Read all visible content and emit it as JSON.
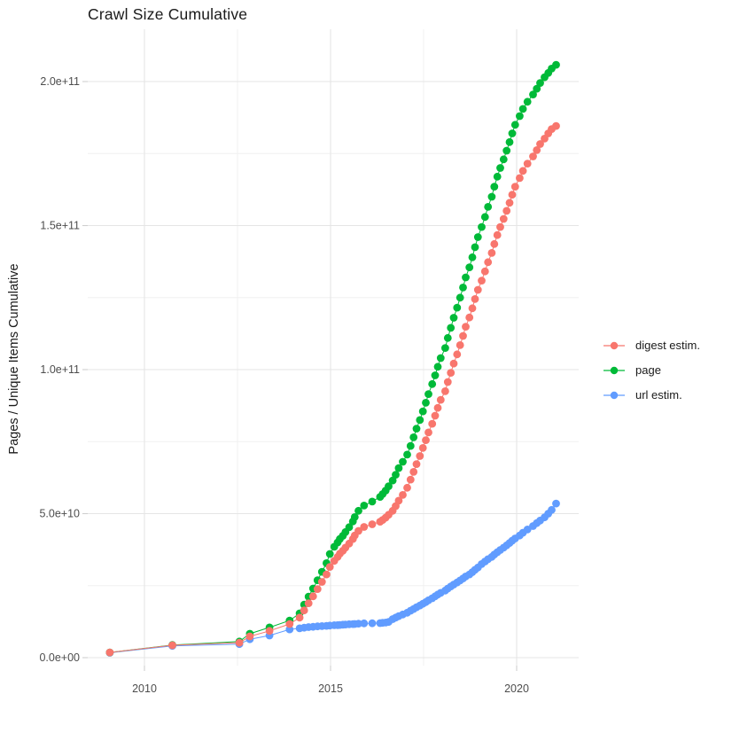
{
  "title": "Crawl Size Cumulative",
  "axes": {
    "y_label": "Pages / Unique Items Cumulative",
    "y_ticks": [
      {
        "label": "0.0e+00",
        "value_e9": 0
      },
      {
        "label": "5.0e+10",
        "value_e9": 50
      },
      {
        "label": "1.0e+11",
        "value_e9": 100
      },
      {
        "label": "1.5e+11",
        "value_e9": 150
      },
      {
        "label": "2.0e+11",
        "value_e9": 200
      }
    ],
    "x_ticks": [
      {
        "label": "2010",
        "year": 2010
      },
      {
        "label": "2015",
        "year": 2015
      },
      {
        "label": "2020",
        "year": 2020
      }
    ]
  },
  "legend": {
    "items": [
      {
        "label": "digest estim.",
        "color": "#F8766D",
        "series": "digest estim."
      },
      {
        "label": "page",
        "color": "#00BA38",
        "series": "page"
      },
      {
        "label": "url estim.",
        "color": "#619CFF",
        "series": "url estim."
      }
    ]
  },
  "colors": {
    "digest": "#F8766D",
    "page": "#00BA38",
    "url": "#619CFF",
    "grid_major": "#e5e5e5",
    "grid_minor": "#f0f0f0",
    "tick_mark": "#cfcfcf",
    "tick_text": "#4d4d4d",
    "text": "#1a1a1a"
  },
  "chart_data": {
    "type": "scatter",
    "title": "Crawl Size Cumulative",
    "xlabel": "",
    "ylabel": "Pages / Unique Items Cumulative",
    "x_unit": "year (crawl date)",
    "values_unit_multiplier": 1000000000.0,
    "xlim": [
      2008.5,
      2021.7
    ],
    "ylim_e9": [
      0,
      218
    ],
    "grid": true,
    "legend_position": "right",
    "x_minor_breaks": [
      2012.5,
      2017.5
    ],
    "y_minor_breaks_e9": [
      25,
      75,
      125,
      175
    ],
    "series": [
      {
        "name": "digest estim.",
        "color": "#F8766D",
        "points_year_e9": [
          [
            2009.07,
            1.8
          ],
          [
            2010.75,
            4.3
          ],
          [
            2012.55,
            5.2
          ],
          [
            2012.83,
            7.4
          ],
          [
            2013.36,
            9.3
          ],
          [
            2013.9,
            11.7
          ],
          [
            2014.17,
            13.9
          ],
          [
            2014.29,
            16.4
          ],
          [
            2014.41,
            18.9
          ],
          [
            2014.53,
            21.3
          ],
          [
            2014.65,
            23.8
          ],
          [
            2014.77,
            26.3
          ],
          [
            2014.89,
            28.9
          ],
          [
            2014.98,
            31.5
          ],
          [
            2015.1,
            33.6
          ],
          [
            2015.19,
            35.0
          ],
          [
            2015.25,
            36.1
          ],
          [
            2015.33,
            37.1
          ],
          [
            2015.4,
            38.2
          ],
          [
            2015.5,
            39.6
          ],
          [
            2015.6,
            41.2
          ],
          [
            2015.65,
            42.4
          ],
          [
            2015.75,
            44.0
          ],
          [
            2015.9,
            45.4
          ],
          [
            2016.12,
            46.3
          ],
          [
            2016.33,
            47.2
          ],
          [
            2016.4,
            47.8
          ],
          [
            2016.48,
            48.6
          ],
          [
            2016.56,
            49.6
          ],
          [
            2016.67,
            51.0
          ],
          [
            2016.75,
            52.6
          ],
          [
            2016.83,
            54.5
          ],
          [
            2016.94,
            56.5
          ],
          [
            2017.06,
            59.0
          ],
          [
            2017.15,
            61.8
          ],
          [
            2017.23,
            64.5
          ],
          [
            2017.31,
            67.2
          ],
          [
            2017.4,
            70.0
          ],
          [
            2017.48,
            72.8
          ],
          [
            2017.56,
            75.5
          ],
          [
            2017.63,
            78.2
          ],
          [
            2017.73,
            81.2
          ],
          [
            2017.81,
            84.0
          ],
          [
            2017.88,
            86.7
          ],
          [
            2017.96,
            89.5
          ],
          [
            2018.08,
            92.5
          ],
          [
            2018.15,
            95.7
          ],
          [
            2018.23,
            98.9
          ],
          [
            2018.31,
            102.1
          ],
          [
            2018.4,
            105.3
          ],
          [
            2018.48,
            108.5
          ],
          [
            2018.56,
            111.7
          ],
          [
            2018.63,
            114.9
          ],
          [
            2018.73,
            118.1
          ],
          [
            2018.81,
            121.3
          ],
          [
            2018.88,
            124.5
          ],
          [
            2018.96,
            127.7
          ],
          [
            2019.06,
            130.9
          ],
          [
            2019.15,
            134.1
          ],
          [
            2019.23,
            137.3
          ],
          [
            2019.33,
            140.5
          ],
          [
            2019.4,
            143.6
          ],
          [
            2019.48,
            146.7
          ],
          [
            2019.56,
            149.5
          ],
          [
            2019.65,
            152.3
          ],
          [
            2019.73,
            155.1
          ],
          [
            2019.81,
            157.9
          ],
          [
            2019.88,
            160.7
          ],
          [
            2019.96,
            163.5
          ],
          [
            2020.08,
            166.5
          ],
          [
            2020.17,
            169.0
          ],
          [
            2020.29,
            171.5
          ],
          [
            2020.44,
            174.0
          ],
          [
            2020.54,
            176.2
          ],
          [
            2020.63,
            178.3
          ],
          [
            2020.75,
            180.2
          ],
          [
            2020.85,
            182.0
          ],
          [
            2020.94,
            183.5
          ],
          [
            2021.06,
            184.6
          ]
        ]
      },
      {
        "name": "page",
        "color": "#00BA38",
        "points_year_e9": [
          [
            2009.07,
            1.8
          ],
          [
            2010.75,
            4.4
          ],
          [
            2012.55,
            5.6
          ],
          [
            2012.83,
            8.3
          ],
          [
            2013.36,
            10.5
          ],
          [
            2013.9,
            12.9
          ],
          [
            2014.17,
            15.4
          ],
          [
            2014.29,
            18.4
          ],
          [
            2014.41,
            21.2
          ],
          [
            2014.53,
            24.0
          ],
          [
            2014.65,
            26.9
          ],
          [
            2014.77,
            29.8
          ],
          [
            2014.89,
            32.8
          ],
          [
            2014.98,
            36.0
          ],
          [
            2015.1,
            38.5
          ],
          [
            2015.19,
            40.0
          ],
          [
            2015.25,
            41.2
          ],
          [
            2015.33,
            42.3
          ],
          [
            2015.4,
            43.6
          ],
          [
            2015.5,
            45.3
          ],
          [
            2015.6,
            47.3
          ],
          [
            2015.65,
            48.8
          ],
          [
            2015.75,
            51.0
          ],
          [
            2015.9,
            52.8
          ],
          [
            2016.12,
            54.2
          ],
          [
            2016.33,
            55.8
          ],
          [
            2016.4,
            56.8
          ],
          [
            2016.48,
            58.0
          ],
          [
            2016.56,
            59.5
          ],
          [
            2016.67,
            61.5
          ],
          [
            2016.75,
            63.5
          ],
          [
            2016.83,
            65.8
          ],
          [
            2016.94,
            68.0
          ],
          [
            2017.06,
            70.5
          ],
          [
            2017.15,
            73.5
          ],
          [
            2017.23,
            76.5
          ],
          [
            2017.31,
            79.5
          ],
          [
            2017.4,
            82.5
          ],
          [
            2017.48,
            85.5
          ],
          [
            2017.56,
            88.5
          ],
          [
            2017.63,
            91.5
          ],
          [
            2017.73,
            95.0
          ],
          [
            2017.81,
            98.0
          ],
          [
            2017.88,
            101.0
          ],
          [
            2017.96,
            104.0
          ],
          [
            2018.08,
            107.5
          ],
          [
            2018.15,
            111.0
          ],
          [
            2018.23,
            114.5
          ],
          [
            2018.31,
            118.0
          ],
          [
            2018.4,
            121.5
          ],
          [
            2018.48,
            125.0
          ],
          [
            2018.56,
            128.5
          ],
          [
            2018.63,
            132.0
          ],
          [
            2018.73,
            135.5
          ],
          [
            2018.81,
            139.0
          ],
          [
            2018.88,
            142.5
          ],
          [
            2018.96,
            146.0
          ],
          [
            2019.06,
            149.5
          ],
          [
            2019.15,
            153.0
          ],
          [
            2019.23,
            156.5
          ],
          [
            2019.33,
            160.0
          ],
          [
            2019.4,
            163.5
          ],
          [
            2019.48,
            167.0
          ],
          [
            2019.56,
            170.0
          ],
          [
            2019.65,
            173.0
          ],
          [
            2019.73,
            176.0
          ],
          [
            2019.81,
            179.0
          ],
          [
            2019.88,
            182.0
          ],
          [
            2019.96,
            185.0
          ],
          [
            2020.08,
            188.0
          ],
          [
            2020.17,
            190.5
          ],
          [
            2020.29,
            193.0
          ],
          [
            2020.44,
            195.5
          ],
          [
            2020.54,
            197.5
          ],
          [
            2020.63,
            199.5
          ],
          [
            2020.75,
            201.5
          ],
          [
            2020.85,
            203.0
          ],
          [
            2020.94,
            204.5
          ],
          [
            2021.06,
            205.8
          ]
        ]
      },
      {
        "name": "url estim.",
        "color": "#619CFF",
        "points_year_e9": [
          [
            2009.07,
            1.7
          ],
          [
            2010.75,
            4.1
          ],
          [
            2012.55,
            4.7
          ],
          [
            2012.83,
            6.4
          ],
          [
            2013.36,
            7.7
          ],
          [
            2013.9,
            9.8
          ],
          [
            2014.17,
            10.2
          ],
          [
            2014.29,
            10.4
          ],
          [
            2014.41,
            10.6
          ],
          [
            2014.53,
            10.7
          ],
          [
            2014.65,
            10.85
          ],
          [
            2014.77,
            10.95
          ],
          [
            2014.89,
            11.05
          ],
          [
            2014.98,
            11.15
          ],
          [
            2015.1,
            11.25
          ],
          [
            2015.19,
            11.3
          ],
          [
            2015.25,
            11.35
          ],
          [
            2015.33,
            11.45
          ],
          [
            2015.4,
            11.5
          ],
          [
            2015.5,
            11.6
          ],
          [
            2015.6,
            11.65
          ],
          [
            2015.65,
            11.7
          ],
          [
            2015.75,
            11.8
          ],
          [
            2015.9,
            11.9
          ],
          [
            2016.12,
            11.95
          ],
          [
            2016.33,
            12.0
          ],
          [
            2016.4,
            12.1
          ],
          [
            2016.48,
            12.2
          ],
          [
            2016.56,
            12.4
          ],
          [
            2016.67,
            13.4
          ],
          [
            2016.75,
            13.9
          ],
          [
            2016.83,
            14.4
          ],
          [
            2016.94,
            15.0
          ],
          [
            2017.06,
            15.6
          ],
          [
            2017.15,
            16.3
          ],
          [
            2017.23,
            16.9
          ],
          [
            2017.31,
            17.5
          ],
          [
            2017.4,
            18.1
          ],
          [
            2017.48,
            18.7
          ],
          [
            2017.56,
            19.3
          ],
          [
            2017.63,
            19.9
          ],
          [
            2017.73,
            20.6
          ],
          [
            2017.81,
            21.3
          ],
          [
            2017.88,
            21.9
          ],
          [
            2017.96,
            22.5
          ],
          [
            2018.08,
            23.3
          ],
          [
            2018.15,
            24.0
          ],
          [
            2018.23,
            24.7
          ],
          [
            2018.31,
            25.4
          ],
          [
            2018.4,
            26.1
          ],
          [
            2018.48,
            26.8
          ],
          [
            2018.56,
            27.5
          ],
          [
            2018.63,
            28.2
          ],
          [
            2018.73,
            28.9
          ],
          [
            2018.81,
            29.7
          ],
          [
            2018.88,
            30.5
          ],
          [
            2018.96,
            31.3
          ],
          [
            2019.06,
            32.5
          ],
          [
            2019.15,
            33.4
          ],
          [
            2019.23,
            34.2
          ],
          [
            2019.33,
            35.0
          ],
          [
            2019.4,
            35.8
          ],
          [
            2019.48,
            36.6
          ],
          [
            2019.56,
            37.4
          ],
          [
            2019.65,
            38.2
          ],
          [
            2019.73,
            39.0
          ],
          [
            2019.81,
            39.8
          ],
          [
            2019.88,
            40.6
          ],
          [
            2019.96,
            41.4
          ],
          [
            2020.08,
            42.4
          ],
          [
            2020.17,
            43.4
          ],
          [
            2020.29,
            44.5
          ],
          [
            2020.44,
            45.7
          ],
          [
            2020.54,
            46.7
          ],
          [
            2020.63,
            47.6
          ],
          [
            2020.75,
            48.7
          ],
          [
            2020.85,
            50.0
          ],
          [
            2020.94,
            51.3
          ],
          [
            2021.06,
            53.5
          ]
        ]
      }
    ]
  }
}
